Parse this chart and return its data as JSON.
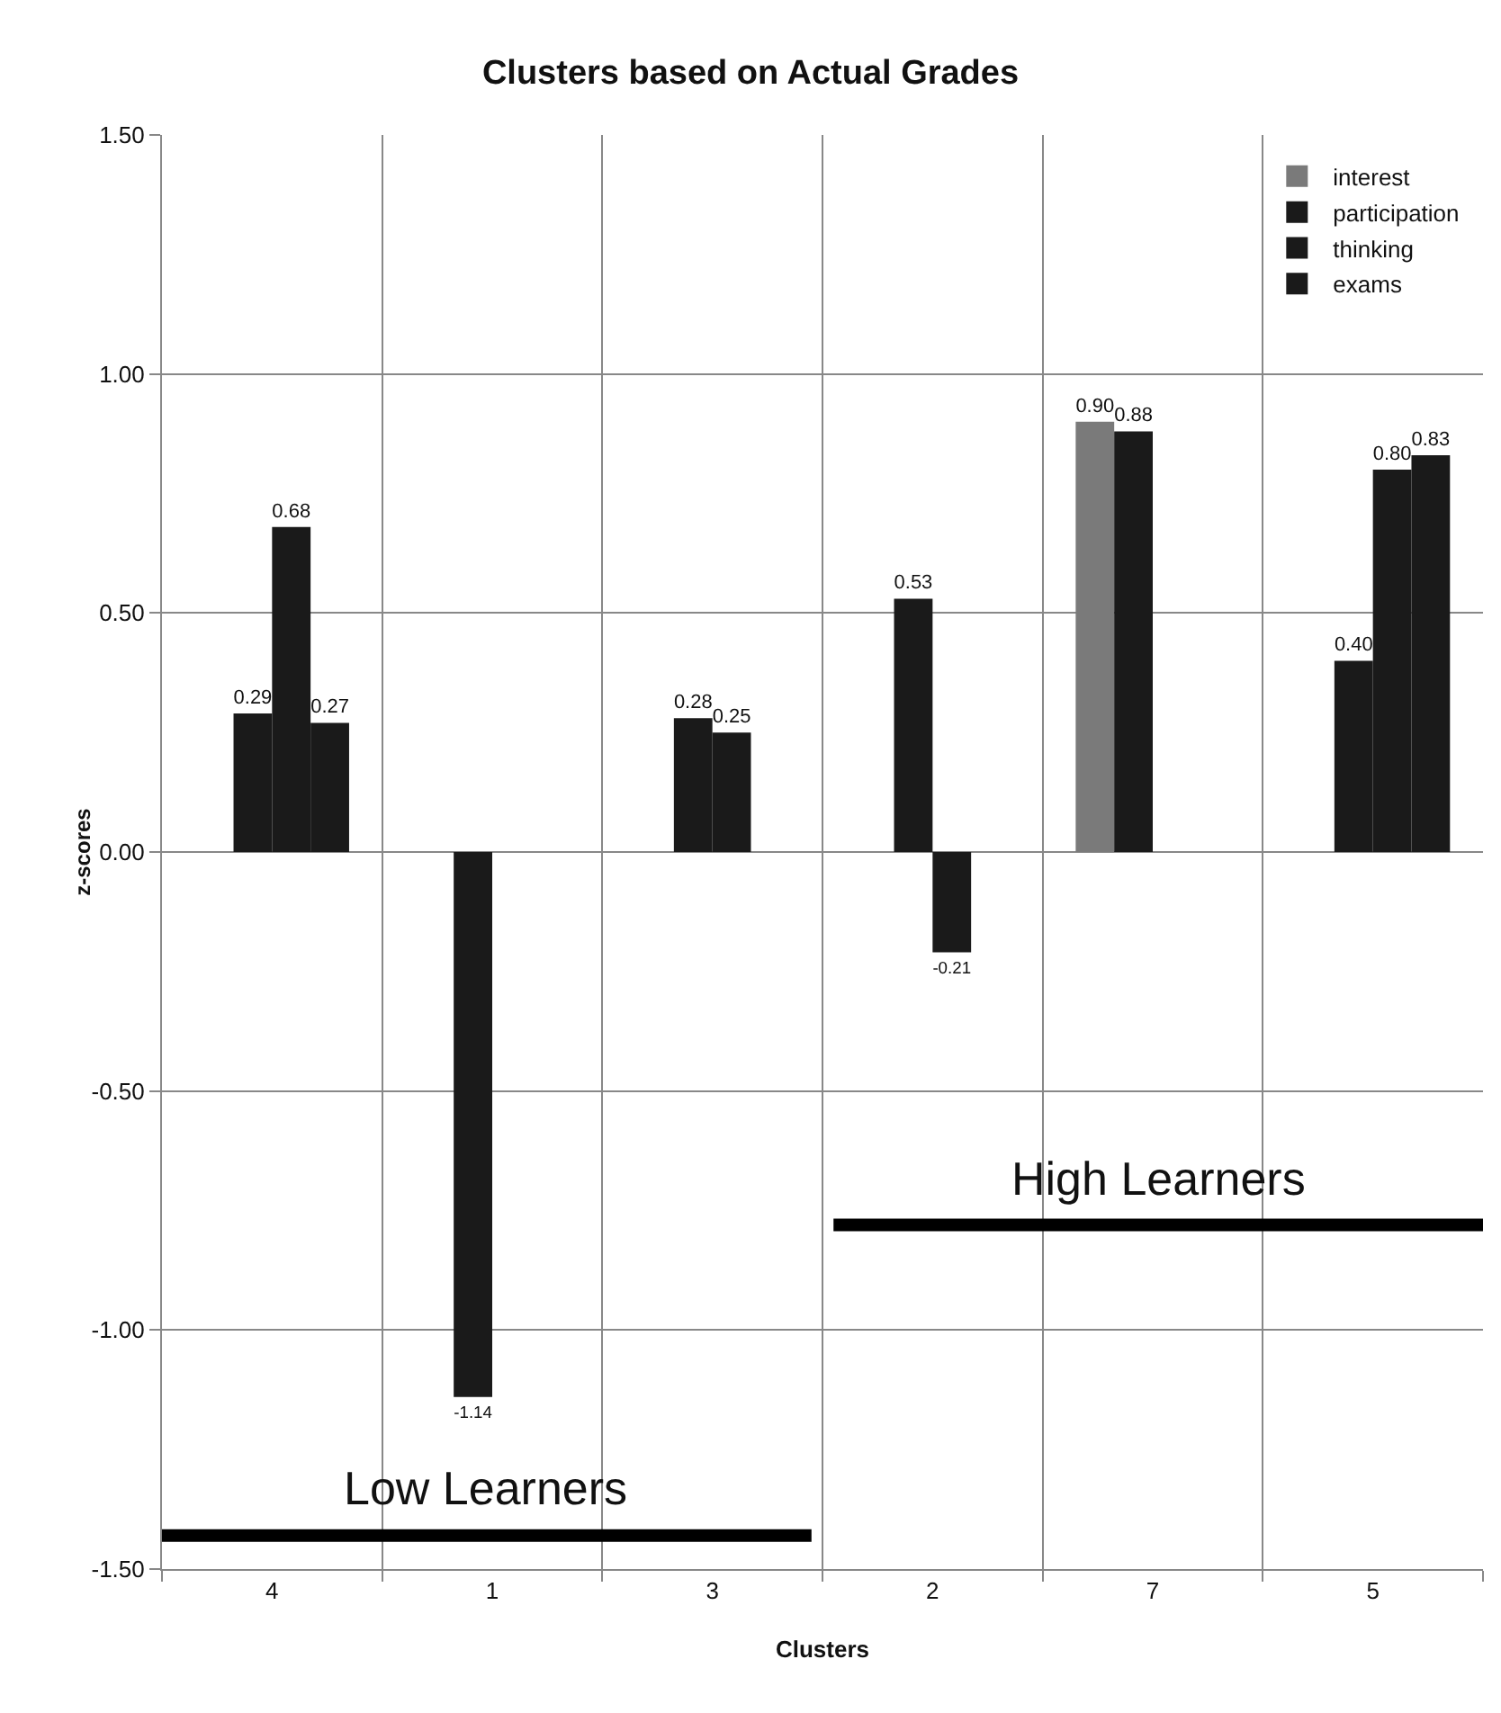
{
  "chart_data": {
    "type": "bar",
    "title": "Clusters based on Actual Grades",
    "xlabel": "Clusters",
    "ylabel": "z-scores",
    "categories": [
      "4",
      "1",
      "3",
      "2",
      "7",
      "5"
    ],
    "series": [
      {
        "name": "interest",
        "color": "#7a7a7a",
        "values": [
          null,
          null,
          null,
          null,
          0.9,
          null
        ],
        "value_labels": [
          null,
          null,
          null,
          null,
          "0.90",
          null
        ]
      },
      {
        "name": "participation",
        "color": "#1a1a1a",
        "values": [
          0.29,
          -1.14,
          0.28,
          0.53,
          0.88,
          0.4
        ],
        "value_labels": [
          "0.29",
          "-1.14",
          "0.28",
          "0.53",
          "0.88",
          "0.40"
        ]
      },
      {
        "name": "thinking",
        "color": "#1a1a1a",
        "values": [
          0.68,
          null,
          0.25,
          -0.21,
          null,
          0.8
        ],
        "value_labels": [
          "0.68",
          null,
          "0.25",
          "-0.21",
          null,
          "0.80"
        ]
      },
      {
        "name": "exams",
        "color": "#1a1a1a",
        "values": [
          0.27,
          null,
          null,
          null,
          null,
          0.83
        ],
        "value_labels": [
          "0.27",
          null,
          null,
          null,
          null,
          "0.83"
        ]
      }
    ],
    "ylim": [
      -1.5,
      1.5
    ],
    "yticks": [
      {
        "value": -1.5,
        "label": "-1.50"
      },
      {
        "value": -1,
        "label": "-1.00"
      },
      {
        "value": -0.5,
        "label": "-0.50"
      },
      {
        "value": 0,
        "label": "0.00"
      },
      {
        "value": 0.5,
        "label": "0.50"
      },
      {
        "value": 1,
        "label": "1.00"
      },
      {
        "value": 1.5,
        "label": "1.50"
      }
    ],
    "ref_lines": [
      {
        "axis": "y",
        "value": -1.43,
        "label": "Low Learners",
        "color": "#000000"
      },
      {
        "axis": "y",
        "value": -0.78,
        "label": "High Learners",
        "color": "#000000"
      }
    ],
    "grid": true,
    "legend": "top right"
  }
}
